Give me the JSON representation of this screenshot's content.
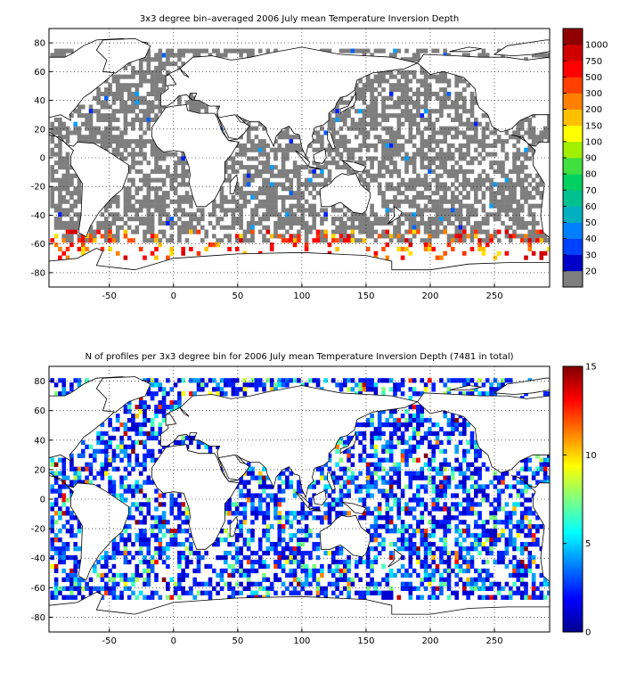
{
  "chart_data": [
    {
      "type": "heatmap",
      "title": "3x3 degree bin–averaged 2006 July mean Temperature Inversion Depth",
      "xlabel": "",
      "ylabel": "",
      "xlim": [
        -97,
        293
      ],
      "ylim": [
        -90,
        90
      ],
      "x_ticks": [
        -50,
        0,
        50,
        100,
        150,
        200,
        250
      ],
      "y_ticks": [
        80,
        60,
        40,
        20,
        0,
        -20,
        -40,
        -60,
        -80
      ],
      "grid": true,
      "bin_size_deg": 3,
      "colorbar": {
        "type": "discrete",
        "labels": [
          "20",
          "30",
          "40",
          "50",
          "60",
          "70",
          "80",
          "90",
          "100",
          "150",
          "200",
          "300",
          "500",
          "750",
          "1000"
        ],
        "colors": [
          "#7f7f7f",
          "#0000c8",
          "#0040ff",
          "#0080ff",
          "#00b0c0",
          "#00c090",
          "#00d060",
          "#40e040",
          "#a0f000",
          "#ffff00",
          "#ffc000",
          "#ff8000",
          "#ff4000",
          "#ff0000",
          "#d00000",
          "#900000"
        ]
      },
      "series": [
        {
          "region": "low-value bins (grey, <=20)",
          "color": "#7f7f7f",
          "lat_range": [
            -50,
            75
          ]
        },
        {
          "region": "high-value bins (orange/red)",
          "color": "#ff3000",
          "lat_range": [
            -72,
            -50
          ]
        }
      ]
    },
    {
      "type": "heatmap",
      "title": "N of profiles per 3x3 degree bin for 2006 July mean Temperature Inversion Depth  (7481 in total)",
      "xlabel": "",
      "ylabel": "",
      "xlim": [
        -97,
        293
      ],
      "ylim": [
        -90,
        90
      ],
      "x_ticks": [
        -50,
        0,
        50,
        100,
        150,
        200,
        250
      ],
      "y_ticks": [
        80,
        60,
        40,
        20,
        0,
        -20,
        -40,
        -60,
        -80
      ],
      "grid": true,
      "bin_size_deg": 3,
      "total_profiles": 7481,
      "colorbar": {
        "type": "continuous",
        "colormap": "jet",
        "range": [
          0,
          15
        ],
        "ticks": [
          "15",
          "10",
          "5",
          "0"
        ]
      }
    }
  ]
}
